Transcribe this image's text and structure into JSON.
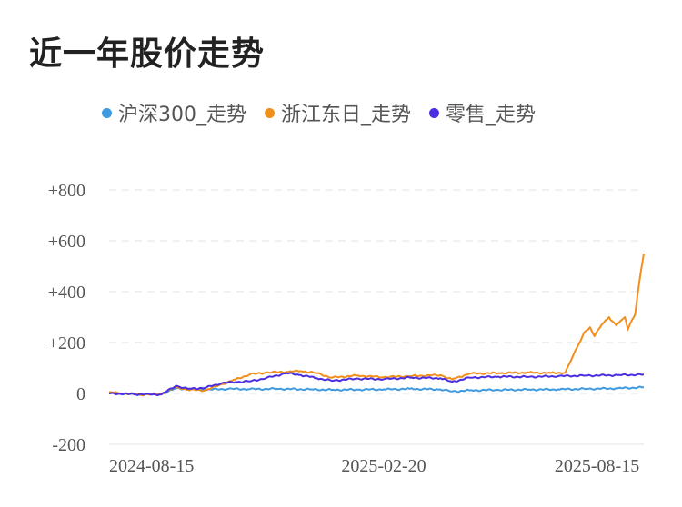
{
  "title": "近一年股价走势",
  "chart_data": {
    "type": "line",
    "title": "近一年股价走势",
    "xlabel": "",
    "ylabel": "",
    "ylim": [
      -200,
      800
    ],
    "yticks": [
      "+800",
      "+600",
      "+400",
      "+200",
      "0",
      "-200"
    ],
    "ytick_values": [
      800,
      600,
      400,
      200,
      0,
      -200
    ],
    "xticks": [
      "2024-08-15",
      "2025-02-20",
      "2025-08-15"
    ],
    "xtick_values": [
      "2024-08-15",
      "2025-02-20",
      "2025-08-15"
    ],
    "xlim": [
      "2024-08-15",
      "2025-08-18"
    ],
    "grid": true,
    "legend_position": "top",
    "series": [
      {
        "name": "沪深300_走势",
        "color": "#3f9ae0",
        "points": [
          [
            "2024-08-15",
            0
          ],
          [
            "2024-09-01",
            -2
          ],
          [
            "2024-09-20",
            -3
          ],
          [
            "2024-09-30",
            20
          ],
          [
            "2024-10-08",
            18
          ],
          [
            "2024-10-20",
            15
          ],
          [
            "2024-11-05",
            18
          ],
          [
            "2024-11-20",
            17
          ],
          [
            "2024-12-10",
            18
          ],
          [
            "2024-12-31",
            16
          ],
          [
            "2025-01-15",
            14
          ],
          [
            "2025-02-01",
            15
          ],
          [
            "2025-02-20",
            16
          ],
          [
            "2025-03-10",
            18
          ],
          [
            "2025-03-31",
            16
          ],
          [
            "2025-04-08",
            8
          ],
          [
            "2025-04-20",
            12
          ],
          [
            "2025-05-10",
            14
          ],
          [
            "2025-05-31",
            15
          ],
          [
            "2025-06-20",
            16
          ],
          [
            "2025-07-10",
            18
          ],
          [
            "2025-07-31",
            20
          ],
          [
            "2025-08-18",
            24
          ]
        ]
      },
      {
        "name": "浙江东日_走势",
        "color": "#f28f1c",
        "points": [
          [
            "2024-08-15",
            5
          ],
          [
            "2024-08-25",
            0
          ],
          [
            "2024-09-05",
            -5
          ],
          [
            "2024-09-20",
            -2
          ],
          [
            "2024-09-30",
            25
          ],
          [
            "2024-10-08",
            15
          ],
          [
            "2024-10-20",
            12
          ],
          [
            "2024-10-31",
            35
          ],
          [
            "2024-11-10",
            55
          ],
          [
            "2024-11-20",
            75
          ],
          [
            "2024-12-01",
            82
          ],
          [
            "2024-12-15",
            85
          ],
          [
            "2024-12-25",
            88
          ],
          [
            "2025-01-05",
            80
          ],
          [
            "2025-01-15",
            62
          ],
          [
            "2025-02-01",
            70
          ],
          [
            "2025-02-20",
            64
          ],
          [
            "2025-03-10",
            68
          ],
          [
            "2025-03-31",
            72
          ],
          [
            "2025-04-08",
            55
          ],
          [
            "2025-04-20",
            78
          ],
          [
            "2025-05-10",
            80
          ],
          [
            "2025-05-31",
            82
          ],
          [
            "2025-06-15",
            80
          ],
          [
            "2025-06-25",
            82
          ],
          [
            "2025-07-03",
            180
          ],
          [
            "2025-07-08",
            240
          ],
          [
            "2025-07-12",
            260
          ],
          [
            "2025-07-15",
            225
          ],
          [
            "2025-07-20",
            270
          ],
          [
            "2025-07-25",
            300
          ],
          [
            "2025-07-30",
            268
          ],
          [
            "2025-08-02",
            285
          ],
          [
            "2025-08-05",
            300
          ],
          [
            "2025-08-07",
            250
          ],
          [
            "2025-08-10",
            290
          ],
          [
            "2025-08-12",
            310
          ],
          [
            "2025-08-14",
            400
          ],
          [
            "2025-08-16",
            480
          ],
          [
            "2025-08-18",
            550
          ]
        ]
      },
      {
        "name": "零售_走势",
        "color": "#4b2ee0",
        "points": [
          [
            "2024-08-15",
            0
          ],
          [
            "2024-09-01",
            -3
          ],
          [
            "2024-09-20",
            -4
          ],
          [
            "2024-09-30",
            30
          ],
          [
            "2024-10-08",
            18
          ],
          [
            "2024-10-20",
            22
          ],
          [
            "2024-10-31",
            40
          ],
          [
            "2024-11-10",
            45
          ],
          [
            "2024-11-20",
            48
          ],
          [
            "2024-12-01",
            60
          ],
          [
            "2024-12-15",
            80
          ],
          [
            "2024-12-25",
            72
          ],
          [
            "2025-01-05",
            60
          ],
          [
            "2025-01-15",
            50
          ],
          [
            "2025-02-01",
            58
          ],
          [
            "2025-02-20",
            56
          ],
          [
            "2025-03-10",
            62
          ],
          [
            "2025-03-31",
            60
          ],
          [
            "2025-04-08",
            45
          ],
          [
            "2025-04-20",
            62
          ],
          [
            "2025-05-10",
            66
          ],
          [
            "2025-05-31",
            65
          ],
          [
            "2025-06-20",
            68
          ],
          [
            "2025-07-10",
            70
          ],
          [
            "2025-07-31",
            72
          ],
          [
            "2025-08-18",
            74
          ]
        ]
      }
    ]
  }
}
